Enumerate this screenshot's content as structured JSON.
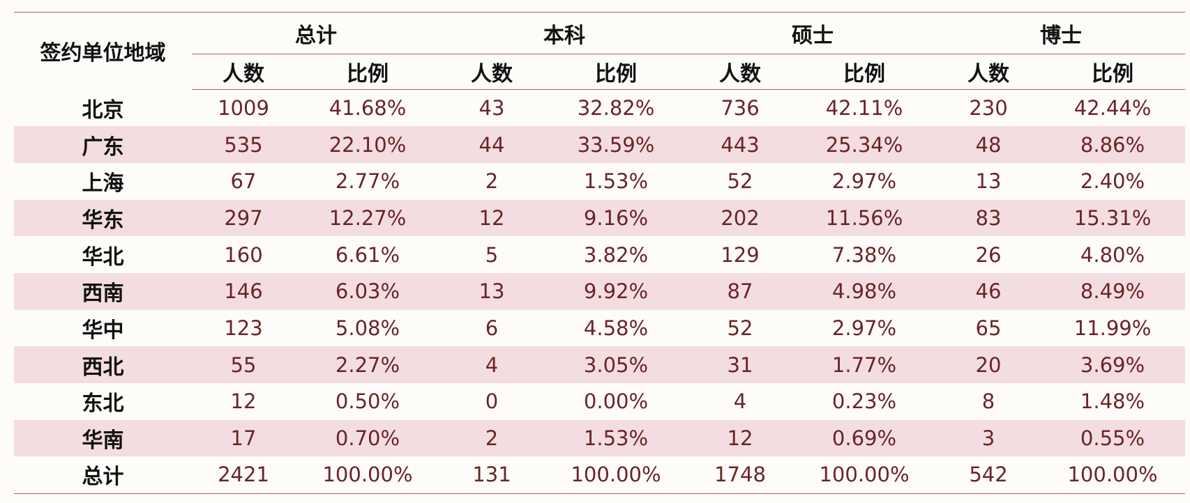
{
  "table": {
    "region_header": "签约单位地域",
    "groups": [
      "总计",
      "本科",
      "硕士",
      "博士"
    ],
    "sub_headers": {
      "count": "人数",
      "ratio": "比例"
    },
    "rows": [
      {
        "region": "北京",
        "cells": [
          "1009",
          "41.68%",
          "43",
          "32.82%",
          "736",
          "42.11%",
          "230",
          "42.44%"
        ]
      },
      {
        "region": "广东",
        "cells": [
          "535",
          "22.10%",
          "44",
          "33.59%",
          "443",
          "25.34%",
          "48",
          "8.86%"
        ]
      },
      {
        "region": "上海",
        "cells": [
          "67",
          "2.77%",
          "2",
          "1.53%",
          "52",
          "2.97%",
          "13",
          "2.40%"
        ]
      },
      {
        "region": "华东",
        "cells": [
          "297",
          "12.27%",
          "12",
          "9.16%",
          "202",
          "11.56%",
          "83",
          "15.31%"
        ]
      },
      {
        "region": "华北",
        "cells": [
          "160",
          "6.61%",
          "5",
          "3.82%",
          "129",
          "7.38%",
          "26",
          "4.80%"
        ]
      },
      {
        "region": "西南",
        "cells": [
          "146",
          "6.03%",
          "13",
          "9.92%",
          "87",
          "4.98%",
          "46",
          "8.49%"
        ]
      },
      {
        "region": "华中",
        "cells": [
          "123",
          "5.08%",
          "6",
          "4.58%",
          "52",
          "2.97%",
          "65",
          "11.99%"
        ]
      },
      {
        "region": "西北",
        "cells": [
          "55",
          "2.27%",
          "4",
          "3.05%",
          "31",
          "1.77%",
          "20",
          "3.69%"
        ]
      },
      {
        "region": "东北",
        "cells": [
          "12",
          "0.50%",
          "0",
          "0.00%",
          "4",
          "0.23%",
          "8",
          "1.48%"
        ]
      },
      {
        "region": "华南",
        "cells": [
          "17",
          "0.70%",
          "2",
          "1.53%",
          "12",
          "0.69%",
          "3",
          "0.55%"
        ]
      },
      {
        "region": "总计",
        "cells": [
          "2421",
          "100.00%",
          "131",
          "100.00%",
          "1748",
          "100.00%",
          "542",
          "100.00%"
        ]
      }
    ]
  },
  "colors": {
    "header_text": "#111111",
    "cell_text": "#6a2428",
    "rule": "#b2575a",
    "stripe": "#f3dde0",
    "background": "#fdfcf9"
  }
}
